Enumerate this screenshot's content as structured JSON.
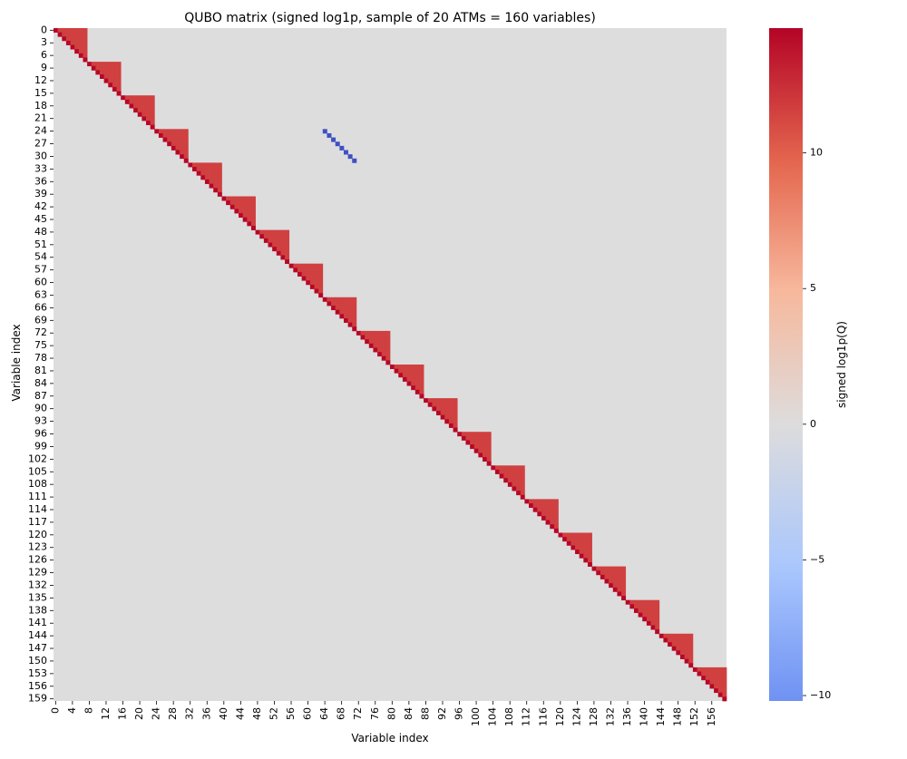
{
  "chart_data": {
    "type": "heatmap",
    "title": "QUBO matrix (signed log1p, sample of 20 ATMs = 160 variables)",
    "xlabel": "Variable index",
    "ylabel": "Variable index",
    "n": 160,
    "x_ticks": [
      0,
      4,
      8,
      12,
      16,
      20,
      24,
      28,
      32,
      36,
      40,
      44,
      48,
      52,
      56,
      60,
      64,
      68,
      72,
      76,
      80,
      84,
      88,
      92,
      96,
      100,
      104,
      108,
      112,
      116,
      120,
      124,
      128,
      132,
      136,
      140,
      144,
      148,
      152,
      156
    ],
    "y_ticks": [
      0,
      3,
      6,
      9,
      12,
      15,
      18,
      21,
      24,
      27,
      30,
      33,
      36,
      39,
      42,
      45,
      48,
      51,
      54,
      57,
      60,
      63,
      66,
      69,
      72,
      75,
      78,
      81,
      84,
      87,
      90,
      93,
      96,
      99,
      102,
      105,
      108,
      111,
      114,
      117,
      120,
      123,
      126,
      129,
      132,
      135,
      138,
      141,
      144,
      147,
      150,
      153,
      156,
      159
    ],
    "block_size": 8,
    "block_count": 20,
    "values": {
      "diagonal": 14.5,
      "within_block_upper": 12.2,
      "background": 0,
      "negative_couplings": -10
    },
    "negative_cells": [
      [
        24,
        64
      ],
      [
        25,
        65
      ],
      [
        26,
        66
      ],
      [
        27,
        67
      ],
      [
        28,
        68
      ],
      [
        29,
        69
      ],
      [
        30,
        70
      ],
      [
        31,
        71
      ]
    ],
    "colorbar": {
      "label": "signed log1p(Q)",
      "vmin": -10.2,
      "vmax": 14.6,
      "ticks": [
        -10,
        -5,
        0,
        5,
        10
      ],
      "tick_labels": [
        "−10",
        "−5",
        "0",
        "5",
        "10"
      ],
      "colormap": "coolwarm",
      "colors": [
        "#6f92f3",
        "#aac7fd",
        "#dddcdc",
        "#f7b89c",
        "#b40426"
      ]
    }
  }
}
